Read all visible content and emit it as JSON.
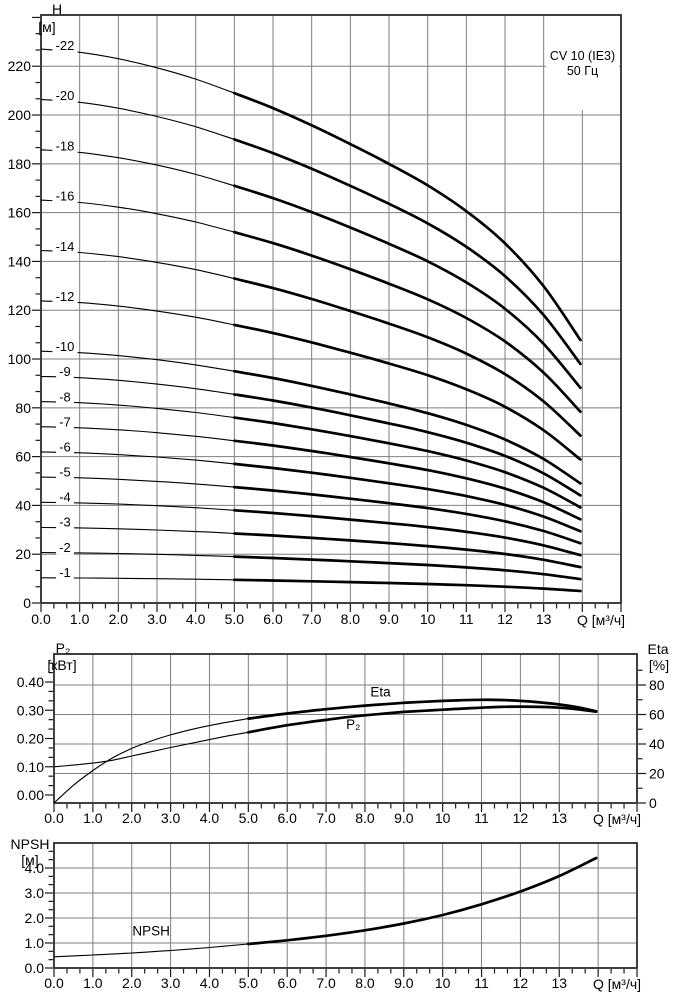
{
  "chart_data": [
    {
      "id": "head-flow-curves",
      "type": "line",
      "title": "CV 10 (IE3)",
      "subtitle": "50 Гц",
      "ylabel": "H",
      "y_unit": "[м]",
      "xlabel": "Q [м³/ч]",
      "xlim": [
        0,
        15
      ],
      "ylim": [
        0,
        241
      ],
      "grid": true,
      "x_tick_labels": [
        "0.0",
        "1.0",
        "2.0",
        "3.0",
        "4.0",
        "5.0",
        "6.0",
        "7.0",
        "8.0",
        "9.0",
        "10",
        "11",
        "12",
        "13"
      ],
      "y_tick_values": [
        0,
        20,
        40,
        60,
        80,
        100,
        120,
        140,
        160,
        180,
        200,
        220
      ],
      "y_tick_labels": [
        "0",
        "20",
        "40",
        "60",
        "80",
        "100",
        "120",
        "140",
        "160",
        "180",
        "200",
        "220"
      ],
      "thick_q_range": [
        5.0,
        13.95
      ],
      "q": [
        0,
        1,
        2,
        3,
        4,
        5,
        6,
        7,
        8,
        9,
        10,
        11,
        12,
        13,
        13.95
      ],
      "single_stage_head": [
        10.32,
        10.26,
        10.14,
        9.97,
        9.76,
        9.5,
        9.22,
        8.9,
        8.55,
        8.18,
        7.78,
        7.3,
        6.7,
        5.9,
        4.9
      ],
      "series": [
        {
          "label": "-22",
          "stages": 22
        },
        {
          "label": "-20",
          "stages": 20
        },
        {
          "label": "-18",
          "stages": 18
        },
        {
          "label": "-16",
          "stages": 16
        },
        {
          "label": "-14",
          "stages": 14
        },
        {
          "label": "-12",
          "stages": 12
        },
        {
          "label": "-10",
          "stages": 10
        },
        {
          "label": "-9",
          "stages": 9
        },
        {
          "label": "-8",
          "stages": 8
        },
        {
          "label": "-7",
          "stages": 7
        },
        {
          "label": "-6",
          "stages": 6
        },
        {
          "label": "-5",
          "stages": 5
        },
        {
          "label": "-4",
          "stages": 4
        },
        {
          "label": "-3",
          "stages": 3
        },
        {
          "label": "-2",
          "stages": 2
        },
        {
          "label": "-1",
          "stages": 1
        }
      ]
    },
    {
      "id": "power-efficiency",
      "type": "line",
      "ylabel": "P₂",
      "y_unit": "[кВт]",
      "y2label": "Eta",
      "y2_unit": "[%]",
      "xlabel": "Q [м³/ч]",
      "xlim": [
        0,
        15
      ],
      "ylim_left": [
        0,
        0.5
      ],
      "ylim_right": [
        0,
        101
      ],
      "grid": true,
      "x_tick_labels": [
        "0.0",
        "1.0",
        "2.0",
        "3.0",
        "4.0",
        "5.0",
        "6.0",
        "7.0",
        "8.0",
        "9.0",
        "10",
        "11",
        "12",
        "13"
      ],
      "left_tick_values": [
        0,
        0.1,
        0.2,
        0.3,
        0.4
      ],
      "left_tick_labels": [
        "0.00",
        "0.10",
        "0.20",
        "0.30",
        "0.40"
      ],
      "right_tick_values": [
        0,
        20,
        40,
        60,
        80
      ],
      "right_tick_labels": [
        "0",
        "20",
        "40",
        "60",
        "80"
      ],
      "thick_q_range": [
        5.0,
        13.95
      ],
      "x": [
        0,
        0.5,
        1,
        1.5,
        2,
        2.5,
        3,
        3.5,
        4,
        4.5,
        5,
        5.5,
        6,
        6.5,
        7,
        7.5,
        8,
        8.5,
        9,
        9.5,
        10,
        10.5,
        11,
        11.5,
        12,
        12.5,
        13,
        13.5,
        13.95
      ],
      "series": [
        {
          "name": "P₂",
          "axis": "left",
          "values": [
            0.1,
            0.106,
            0.113,
            0.123,
            0.138,
            0.153,
            0.168,
            0.182,
            0.196,
            0.21,
            0.222,
            0.235,
            0.247,
            0.257,
            0.266,
            0.275,
            0.282,
            0.288,
            0.294,
            0.298,
            0.302,
            0.306,
            0.309,
            0.312,
            0.313,
            0.312,
            0.309,
            0.303,
            0.295
          ],
          "label_pos": {
            "q": 7.7,
            "v": 0.252
          }
        },
        {
          "name": "Eta",
          "axis": "right",
          "values": [
            0,
            12,
            22,
            30.5,
            37,
            42,
            46.2,
            49.6,
            52.5,
            55,
            57.2,
            59,
            60.7,
            62.2,
            63.6,
            64.9,
            66,
            67,
            67.9,
            68.6,
            69.2,
            69.7,
            70,
            69.8,
            69.2,
            68.2,
            66.8,
            64.8,
            62.2
          ],
          "label_pos": {
            "q": 8.4,
            "v": 75.5
          }
        }
      ]
    },
    {
      "id": "npsh",
      "type": "line",
      "ylabel": "NPSH",
      "y_unit": "[м]",
      "xlabel": "Q [м³/ч]",
      "xlim": [
        0,
        15
      ],
      "ylim": [
        0,
        5
      ],
      "grid": true,
      "x_tick_labels": [
        "0.0",
        "1.0",
        "2.0",
        "3.0",
        "4.0",
        "5.0",
        "6.0",
        "7.0",
        "8.0",
        "9.0",
        "10",
        "11",
        "12",
        "13"
      ],
      "y_tick_values": [
        0,
        1,
        2,
        3,
        4
      ],
      "y_tick_labels": [
        "0.0",
        "1.0",
        "2.0",
        "3.0",
        "4.0"
      ],
      "thick_q_range": [
        5.0,
        13.95
      ],
      "x": [
        0,
        1,
        2,
        3,
        4,
        5,
        6,
        7,
        8,
        9,
        10,
        11,
        12,
        13,
        13.95
      ],
      "series": [
        {
          "name": "NPSH",
          "values": [
            0.45,
            0.52,
            0.6,
            0.7,
            0.82,
            0.96,
            1.11,
            1.29,
            1.51,
            1.78,
            2.12,
            2.55,
            3.06,
            3.68,
            4.4
          ],
          "label_pos": {
            "q": 2.5,
            "v": 1.5
          }
        }
      ]
    }
  ],
  "colors": {
    "curve": "#000000",
    "grid": "#7f7f7f",
    "border": "#2b2b2b",
    "tick": "#1a1a1a",
    "background": "#ffffff"
  }
}
